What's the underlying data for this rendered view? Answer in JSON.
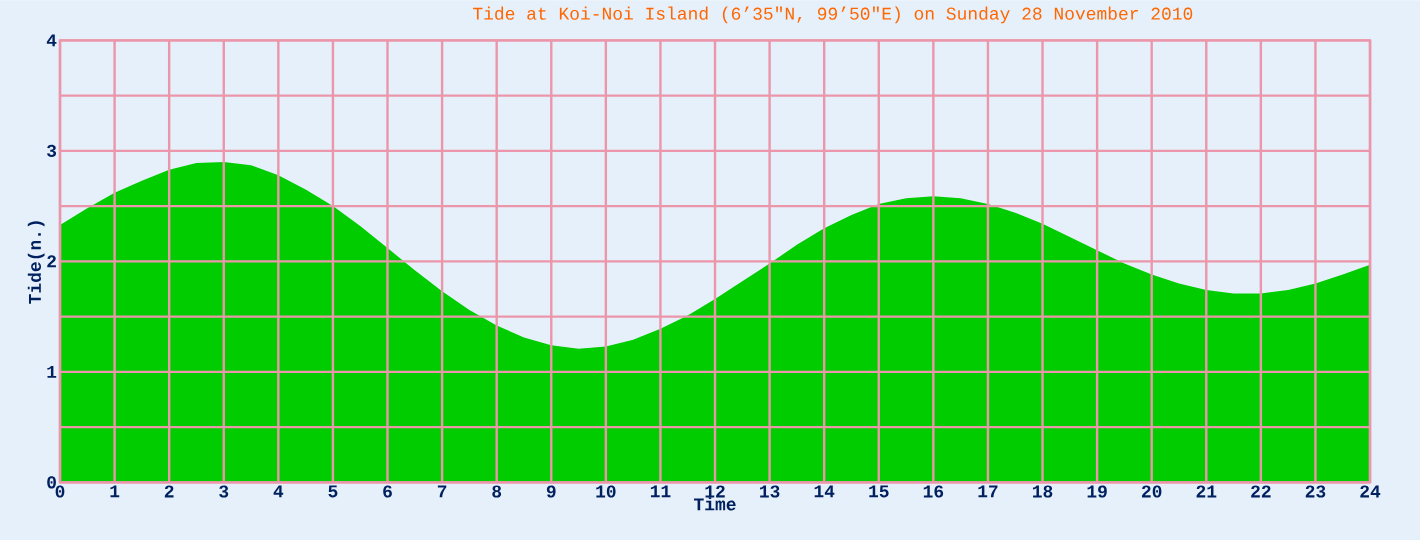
{
  "chart_data": {
    "type": "area",
    "title": "Tide at Koi-Noi Island (6’35\"N, 99’50\"E) on Sunday 28 November 2010",
    "xlabel": "Time",
    "ylabel": "Tide(n.)",
    "x": [
      0,
      0.5,
      1,
      1.5,
      2,
      2.5,
      3,
      3.5,
      4,
      4.5,
      5,
      5.5,
      6,
      6.5,
      7,
      7.5,
      8,
      8.5,
      9,
      9.5,
      10,
      10.5,
      11,
      11.5,
      12,
      12.5,
      13,
      13.5,
      14,
      14.5,
      15,
      15.5,
      16,
      16.5,
      17,
      17.5,
      18,
      18.5,
      19,
      19.5,
      20,
      20.5,
      21,
      21.5,
      22,
      22.5,
      23,
      23.5,
      24
    ],
    "values": [
      2.33,
      2.48,
      2.62,
      2.73,
      2.83,
      2.89,
      2.9,
      2.87,
      2.78,
      2.65,
      2.5,
      2.32,
      2.12,
      1.92,
      1.73,
      1.56,
      1.42,
      1.31,
      1.24,
      1.21,
      1.23,
      1.29,
      1.39,
      1.51,
      1.66,
      1.82,
      1.98,
      2.15,
      2.3,
      2.42,
      2.52,
      2.57,
      2.59,
      2.57,
      2.52,
      2.44,
      2.34,
      2.22,
      2.1,
      1.98,
      1.88,
      1.8,
      1.74,
      1.71,
      1.71,
      1.74,
      1.8,
      1.88,
      1.97
    ],
    "color": "#00cc00",
    "xlim": [
      0,
      24
    ],
    "ylim": [
      0,
      4
    ],
    "xticks": [
      0,
      1,
      2,
      3,
      4,
      5,
      6,
      7,
      8,
      9,
      10,
      11,
      12,
      13,
      14,
      15,
      16,
      17,
      18,
      19,
      20,
      21,
      22,
      23,
      24
    ],
    "yticks": [
      0,
      {
        "value": 0.5,
        "label": null
      },
      1,
      {
        "value": 1.5,
        "label": null
      },
      2,
      {
        "value": 2.5,
        "label": null
      },
      3,
      {
        "value": 3.5,
        "label": null
      },
      4
    ],
    "grid": true
  }
}
